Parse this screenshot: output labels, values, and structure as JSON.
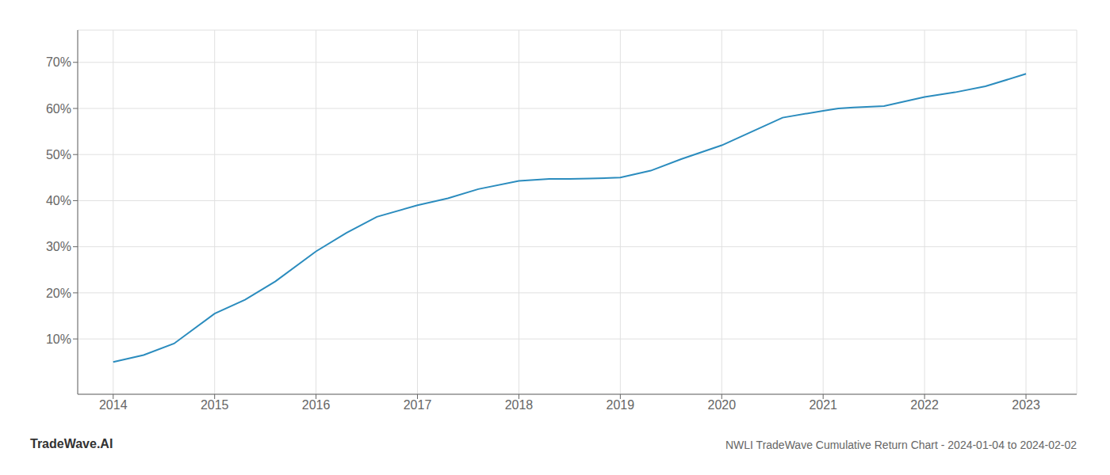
{
  "chart_data": {
    "type": "line",
    "title": "NWLI TradeWave Cumulative Return Chart - 2024-01-04 to 2024-02-02",
    "annotations": [
      "TradeWave.AI"
    ],
    "x": [
      2014.0,
      2014.3,
      2014.6,
      2015.0,
      2015.3,
      2015.6,
      2016.0,
      2016.3,
      2016.6,
      2017.0,
      2017.3,
      2017.6,
      2018.0,
      2018.15,
      2018.3,
      2018.5,
      2018.7,
      2019.0,
      2019.3,
      2019.6,
      2020.0,
      2020.3,
      2020.6,
      2021.0,
      2021.15,
      2021.3,
      2021.6,
      2022.0,
      2022.3,
      2022.6,
      2023.0
    ],
    "values": [
      5.0,
      6.5,
      9.0,
      15.5,
      18.5,
      22.5,
      29.0,
      33.0,
      36.5,
      39.0,
      40.5,
      42.5,
      44.3,
      44.5,
      44.7,
      44.7,
      44.8,
      45.0,
      46.5,
      49.0,
      52.0,
      55.0,
      58.0,
      59.5,
      60.0,
      60.2,
      60.5,
      62.5,
      63.5,
      64.8,
      67.5
    ],
    "color": "#2b8cbe",
    "xlim": [
      2013.65,
      2023.5
    ],
    "ylim": [
      -2,
      77
    ],
    "xticks": [
      2014,
      2015,
      2016,
      2017,
      2018,
      2019,
      2020,
      2021,
      2022,
      2023
    ],
    "yticks": [
      {
        "value": 10,
        "label": "10%"
      },
      {
        "value": 20,
        "label": "20%"
      },
      {
        "value": 30,
        "label": "30%"
      },
      {
        "value": 40,
        "label": "40%"
      },
      {
        "value": 50,
        "label": "50%"
      },
      {
        "value": 60,
        "label": "60%"
      },
      {
        "value": 70,
        "label": "70%"
      }
    ],
    "grid": true
  }
}
